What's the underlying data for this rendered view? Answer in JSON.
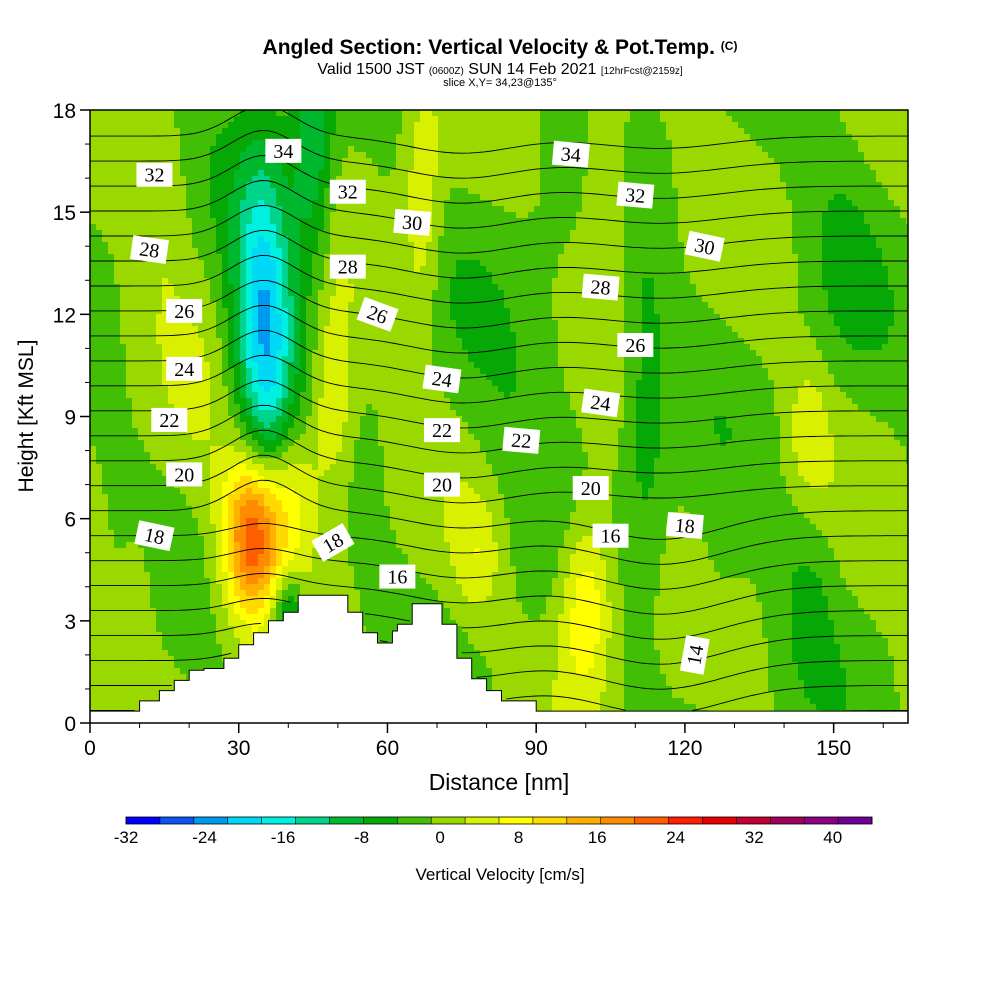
{
  "chart_data": {
    "type": "heatmap",
    "title": "Angled Section: Vertical Velocity & Pot.Temp.",
    "title_units": "(C)",
    "subtitle_main_1": "Valid 1500 JST",
    "subtitle_z": "(0600Z)",
    "subtitle_main_2": "SUN 14 Feb 2021",
    "subtitle_fcst": "[12hrFcst@2159z]",
    "slice_label": "slice X,Y= 34,23@135°",
    "xlabel": "Distance [nm]",
    "ylabel": "Height [Kft MSL]",
    "xlim": [
      0,
      165
    ],
    "ylim": [
      0,
      18
    ],
    "x_ticks": [
      0,
      30,
      60,
      90,
      120,
      150
    ],
    "y_ticks": [
      0,
      3,
      6,
      9,
      12,
      15,
      18
    ],
    "colorbar": {
      "label": "Vertical Velocity [cm/s]",
      "range": [
        -32,
        44
      ],
      "step": 4,
      "tick_labels": [
        -32,
        -24,
        -16,
        -8,
        0,
        8,
        16,
        24,
        32,
        40
      ],
      "colors": [
        "#0000ff",
        "#0d50f5",
        "#0099f0",
        "#00d9f5",
        "#00f0e0",
        "#00d48a",
        "#00b82e",
        "#05a805",
        "#42bf05",
        "#99d900",
        "#d9f000",
        "#ffff00",
        "#ffd900",
        "#ffb000",
        "#ff8c00",
        "#ff5e00",
        "#ff1e00",
        "#e60000",
        "#c40030",
        "#a00058",
        "#8c0082",
        "#6e0096"
      ]
    },
    "field_blobs": [
      {
        "x": 35,
        "y": 12.5,
        "sx": 4.5,
        "sy": 3.2,
        "w": -22
      },
      {
        "x": 45,
        "y": 16.5,
        "sx": 3.0,
        "sy": 2.4,
        "w": -12
      },
      {
        "x": 36,
        "y": 8.0,
        "sx": 3.2,
        "sy": 2.5,
        "w": -8
      },
      {
        "x": 33,
        "y": 5.5,
        "sx": 4.2,
        "sy": 1.7,
        "w": 28
      },
      {
        "x": 40,
        "y": 7.0,
        "sx": 4.5,
        "sy": 1.6,
        "w": 10
      },
      {
        "x": 49,
        "y": 9.5,
        "sx": 3.0,
        "sy": 2.0,
        "w": 10
      },
      {
        "x": 40,
        "y": 3.2,
        "sx": 2.5,
        "sy": 0.8,
        "w": -14
      },
      {
        "x": 67,
        "y": 15.0,
        "sx": 2.8,
        "sy": 2.5,
        "w": 8
      },
      {
        "x": 15,
        "y": 16.0,
        "sx": 4.0,
        "sy": 2.0,
        "w": 5
      },
      {
        "x": 104,
        "y": 16.0,
        "sx": 4.0,
        "sy": 2.5,
        "w": 6
      },
      {
        "x": 100,
        "y": 3.5,
        "sx": 4.0,
        "sy": 2.0,
        "w": 14
      },
      {
        "x": 78,
        "y": 5.0,
        "sx": 3.5,
        "sy": 1.3,
        "w": 6
      },
      {
        "x": 112,
        "y": 9.0,
        "sx": 3.2,
        "sy": 3.5,
        "w": -6
      },
      {
        "x": 145,
        "y": 8.5,
        "sx": 3.0,
        "sy": 1.5,
        "w": 6
      },
      {
        "x": 90,
        "y": 10.0,
        "sx": 11.0,
        "sy": 3.5,
        "w": -3
      },
      {
        "x": 145,
        "y": 4.0,
        "sx": 4.0,
        "sy": 2.0,
        "w": -4
      },
      {
        "x": 152,
        "y": 14.0,
        "sx": 6.0,
        "sy": 3.0,
        "w": -3
      },
      {
        "x": 20,
        "y": 8.0,
        "sx": 6.0,
        "sy": 3.0,
        "w": 2
      },
      {
        "x": 126,
        "y": 3.0,
        "sx": 4.0,
        "sy": 2.0,
        "w": -3
      },
      {
        "x": 10,
        "y": 4.0,
        "sx": 3.0,
        "sy": 2.0,
        "w": 3
      }
    ],
    "theta_contour_levels": [
      12,
      13,
      14,
      15,
      16,
      17,
      18,
      19,
      20,
      21,
      22,
      23,
      24,
      25,
      26,
      27,
      28,
      29,
      30,
      31,
      32,
      33,
      34,
      35,
      36
    ],
    "theta_labels": [
      {
        "text": "32",
        "x": 13,
        "y": 16.1,
        "rot": 0
      },
      {
        "text": "34",
        "x": 39,
        "y": 16.8,
        "rot": 0
      },
      {
        "text": "32",
        "x": 52,
        "y": 15.6,
        "rot": 0
      },
      {
        "text": "28",
        "x": 12,
        "y": 13.9,
        "rot": 8
      },
      {
        "text": "30",
        "x": 65,
        "y": 14.7,
        "rot": 5
      },
      {
        "text": "28",
        "x": 52,
        "y": 13.4,
        "rot": 0
      },
      {
        "text": "26",
        "x": 19,
        "y": 12.1,
        "rot": 0
      },
      {
        "text": "26",
        "x": 58,
        "y": 12.0,
        "rot": 20
      },
      {
        "text": "24",
        "x": 19,
        "y": 10.4,
        "rot": 0
      },
      {
        "text": "24",
        "x": 71,
        "y": 10.1,
        "rot": 8
      },
      {
        "text": "22",
        "x": 16,
        "y": 8.9,
        "rot": 0
      },
      {
        "text": "22",
        "x": 71,
        "y": 8.6,
        "rot": 0
      },
      {
        "text": "22",
        "x": 87,
        "y": 8.3,
        "rot": 5
      },
      {
        "text": "20",
        "x": 19,
        "y": 7.3,
        "rot": 0
      },
      {
        "text": "20",
        "x": 71,
        "y": 7.0,
        "rot": 0
      },
      {
        "text": "20",
        "x": 101,
        "y": 6.9,
        "rot": 0
      },
      {
        "text": "18",
        "x": 13,
        "y": 5.5,
        "rot": 12
      },
      {
        "text": "18",
        "x": 49,
        "y": 5.3,
        "rot": -30
      },
      {
        "text": "16",
        "x": 62,
        "y": 4.3,
        "rot": 0
      },
      {
        "text": "16",
        "x": 105,
        "y": 5.5,
        "rot": 0
      },
      {
        "text": "18",
        "x": 120,
        "y": 5.8,
        "rot": 5
      },
      {
        "text": "34",
        "x": 97,
        "y": 16.7,
        "rot": 5
      },
      {
        "text": "32",
        "x": 110,
        "y": 15.5,
        "rot": 5
      },
      {
        "text": "30",
        "x": 124,
        "y": 14.0,
        "rot": 12
      },
      {
        "text": "28",
        "x": 103,
        "y": 12.8,
        "rot": 5
      },
      {
        "text": "26",
        "x": 110,
        "y": 11.1,
        "rot": 0
      },
      {
        "text": "24",
        "x": 103,
        "y": 9.4,
        "rot": 8
      },
      {
        "text": "14",
        "x": 122,
        "y": 2.0,
        "rot": -80
      }
    ],
    "terrain": [
      [
        0,
        0.35
      ],
      [
        10,
        0.35
      ],
      [
        10,
        0.65
      ],
      [
        14,
        0.65
      ],
      [
        14,
        0.95
      ],
      [
        17,
        0.95
      ],
      [
        17,
        1.25
      ],
      [
        20,
        1.25
      ],
      [
        20,
        1.55
      ],
      [
        23,
        1.55
      ],
      [
        23,
        1.6
      ],
      [
        27,
        1.6
      ],
      [
        27,
        1.9
      ],
      [
        30,
        1.9
      ],
      [
        30,
        2.3
      ],
      [
        33,
        2.3
      ],
      [
        33,
        2.65
      ],
      [
        36,
        2.65
      ],
      [
        36,
        3.0
      ],
      [
        39,
        3.0
      ],
      [
        39,
        3.25
      ],
      [
        42,
        3.25
      ],
      [
        42,
        3.75
      ],
      [
        48,
        3.75
      ],
      [
        48,
        3.75
      ],
      [
        52,
        3.75
      ],
      [
        52,
        3.25
      ],
      [
        55,
        3.25
      ],
      [
        55,
        2.65
      ],
      [
        58,
        2.65
      ],
      [
        58,
        2.35
      ],
      [
        61,
        2.35
      ],
      [
        61,
        2.7
      ],
      [
        62,
        2.7
      ],
      [
        62,
        2.9
      ],
      [
        65,
        2.9
      ],
      [
        65,
        3.5
      ],
      [
        71,
        3.5
      ],
      [
        71,
        2.9
      ],
      [
        74,
        2.9
      ],
      [
        74,
        1.9
      ],
      [
        77,
        1.9
      ],
      [
        77,
        1.3
      ],
      [
        80,
        1.3
      ],
      [
        80,
        0.95
      ],
      [
        83,
        0.95
      ],
      [
        83,
        0.65
      ],
      [
        90,
        0.65
      ],
      [
        90,
        0.35
      ],
      [
        165,
        0.35
      ]
    ]
  }
}
